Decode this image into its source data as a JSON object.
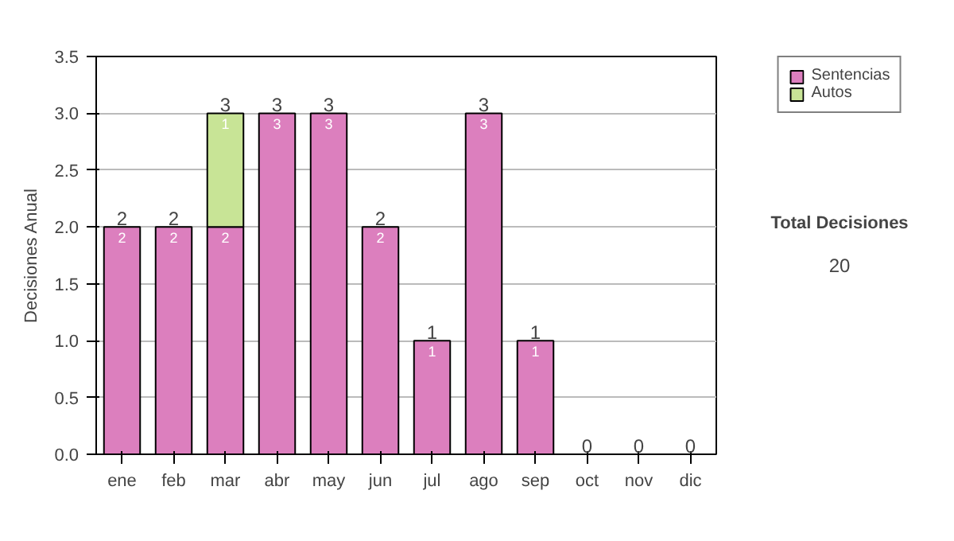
{
  "chart_data": {
    "type": "bar",
    "stacked": true,
    "ylabel": "Decisiones Anual",
    "categories": [
      "ene",
      "feb",
      "mar",
      "abr",
      "may",
      "jun",
      "jul",
      "ago",
      "sep",
      "oct",
      "nov",
      "dic"
    ],
    "series": [
      {
        "name": "Sentencias",
        "color": "#dc7fbe",
        "values": [
          2,
          2,
          2,
          3,
          3,
          2,
          1,
          3,
          1,
          0,
          0,
          0
        ],
        "value_labels": [
          "2",
          "2",
          "2",
          "3",
          "3",
          "2",
          "1",
          "3",
          "1",
          null,
          null,
          null
        ]
      },
      {
        "name": "Autos",
        "color": "#c8e496",
        "values": [
          0,
          0,
          1,
          0,
          0,
          0,
          0,
          0,
          0,
          0,
          0,
          0
        ],
        "value_labels": [
          null,
          null,
          "1",
          null,
          null,
          null,
          null,
          null,
          null,
          null,
          null,
          null
        ]
      }
    ],
    "totals": [
      "2",
      "2",
      "3",
      "3",
      "3",
      "2",
      "1",
      "3",
      "1",
      "0",
      "0",
      "0"
    ],
    "ylim": [
      0,
      3.5
    ],
    "yticks": [
      {
        "value": 0,
        "label": "0.0"
      },
      {
        "value": 0.5,
        "label": "0.5"
      },
      {
        "value": 1,
        "label": "1.0"
      },
      {
        "value": 1.5,
        "label": "1.5"
      },
      {
        "value": 2,
        "label": "2.0"
      },
      {
        "value": 2.5,
        "label": "2.5"
      },
      {
        "value": 3,
        "label": "3.0"
      },
      {
        "value": 3.5,
        "label": "3.5"
      }
    ],
    "grid": "y",
    "legend": "right",
    "annotations": [
      "Total Decisiones",
      "20"
    ]
  }
}
